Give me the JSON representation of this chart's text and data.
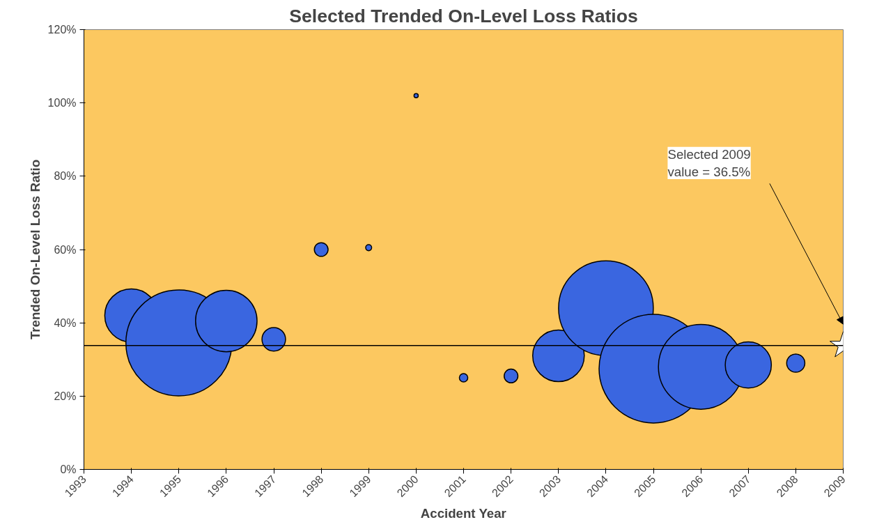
{
  "chart_data": {
    "type": "bubble",
    "title": "Selected Trended On-Level Loss Ratios",
    "xlabel": "Accident Year",
    "ylabel": "Trended On-Level Loss Ratio",
    "xlim": [
      1993,
      2009
    ],
    "xticks": [
      1993,
      1994,
      1995,
      1996,
      1997,
      1998,
      1999,
      2000,
      2001,
      2002,
      2003,
      2004,
      2005,
      2006,
      2007,
      2008,
      2009
    ],
    "ylim": [
      0,
      120
    ],
    "yticks": [
      {
        "value": 0,
        "label": "0%"
      },
      {
        "value": 20,
        "label": "20%"
      },
      {
        "value": 40,
        "label": "40%"
      },
      {
        "value": 60,
        "label": "60%"
      },
      {
        "value": 80,
        "label": "80%"
      },
      {
        "value": 100,
        "label": "100%"
      },
      {
        "value": 120,
        "label": "120%"
      }
    ],
    "grid": false,
    "series": [
      {
        "color": "#3a66e0",
        "x": [
          1994,
          1995,
          1996,
          1997,
          1998,
          1999,
          2000,
          2001,
          2002,
          2003,
          2004,
          2005,
          2006,
          2007,
          2008
        ],
        "values": [
          42,
          34.5,
          40.5,
          35.5,
          60,
          60.5,
          102,
          25,
          25.5,
          31,
          44,
          27.5,
          28,
          28.5,
          29
        ],
        "sizes": [
          0.24,
          0.95,
          0.32,
          0.047,
          0.016,
          0.003,
          0.0015,
          0.006,
          0.016,
          0.225,
          0.76,
          1,
          0.61,
          0.18,
          0.028
        ]
      },
      {
        "type": "scatter",
        "marker": "star",
        "color": "#ffffff",
        "x": [
          2009
        ],
        "values": [
          33.8
        ]
      }
    ],
    "ref_lines": [
      {
        "axis": "y",
        "value": 33.8,
        "color": "#000000"
      }
    ],
    "annotations": [
      "Selected 2009\nvalue = 36.5%"
    ]
  }
}
